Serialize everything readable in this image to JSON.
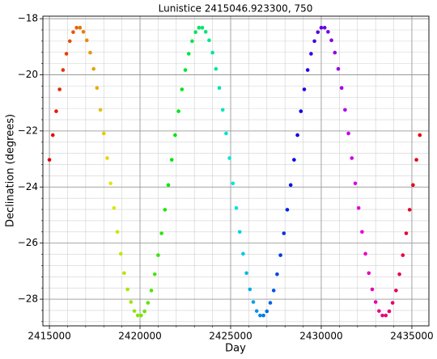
{
  "chart_data": {
    "type": "scatter",
    "title": "Lunistice 2415046.923300, 750",
    "x_label": "Day",
    "y_label": "Declination (degrees)",
    "colormap": "hsv",
    "grid": true,
    "minor_grid": true,
    "xlim": [
      2414640,
      2435940
    ],
    "ylim": [
      -28.95,
      -17.91
    ],
    "xticks": [
      2415000,
      2420000,
      2425000,
      2430000,
      2435000
    ],
    "yticks": [
      {
        "value": -28,
        "label": "−28"
      },
      {
        "value": -26,
        "label": "−26"
      },
      {
        "value": -24,
        "label": "−24"
      },
      {
        "value": -22,
        "label": "−22"
      },
      {
        "value": -20,
        "label": "−20"
      },
      {
        "value": -18,
        "label": "−18"
      }
    ],
    "xminorticks": [
      2416000,
      2417000,
      2418000,
      2419000,
      2421000,
      2422000,
      2423000,
      2424000,
      2426000,
      2427000,
      2428000,
      2429000,
      2431000,
      2432000,
      2433000,
      2434000
    ],
    "yminorticks": [
      -28.8,
      -28.4,
      -27.6,
      -27.2,
      -26.8,
      -26.4,
      -25.6,
      -25.2,
      -24.8,
      -24.4,
      -23.6,
      -23.2,
      -22.8,
      -22.4,
      -21.6,
      -21.2,
      -20.8,
      -20.4,
      -19.6,
      -19.2,
      -18.8,
      -18.4
    ],
    "x": [
      2415000,
      2415187.5,
      2415375,
      2415562.5,
      2415750,
      2415937.5,
      2416125,
      2416312.5,
      2416500,
      2416687.5,
      2416875,
      2417062.5,
      2417250,
      2417437.5,
      2417625,
      2417812.5,
      2418000,
      2418187.5,
      2418375,
      2418562.5,
      2418750,
      2418937.5,
      2419125,
      2419312.5,
      2419500,
      2419687.5,
      2419875,
      2420062.5,
      2420250,
      2420437.5,
      2420625,
      2420812.5,
      2421000,
      2421187.5,
      2421375,
      2421562.5,
      2421750,
      2421937.5,
      2422125,
      2422312.5,
      2422500,
      2422687.5,
      2422875,
      2423062.5,
      2423250,
      2423437.5,
      2423625,
      2423812.5,
      2424000,
      2424187.5,
      2424375,
      2424562.5,
      2424750,
      2424937.5,
      2425125,
      2425312.5,
      2425500,
      2425687.5,
      2425875,
      2426062.5,
      2426250,
      2426437.5,
      2426625,
      2426812.5,
      2427000,
      2427187.5,
      2427375,
      2427562.5,
      2427750,
      2427937.5,
      2428125,
      2428312.5,
      2428500,
      2428687.5,
      2428875,
      2429062.5,
      2429250,
      2429437.5,
      2429625,
      2429812.5,
      2430000,
      2430187.5,
      2430375,
      2430562.5,
      2430750,
      2430937.5,
      2431125,
      2431312.5,
      2431500,
      2431687.5,
      2431875,
      2432062.5,
      2432250,
      2432437.5,
      2432625,
      2432812.5,
      2433000,
      2433187.5,
      2433375,
      2433562.5,
      2433750,
      2433937.5,
      2434125,
      2434312.5,
      2434500,
      2434687.5,
      2434875,
      2435062.5,
      2435250,
      2435437.5
    ],
    "values": [
      -23.03,
      -22.15,
      -21.3,
      -20.52,
      -19.83,
      -19.25,
      -18.8,
      -18.48,
      -18.32,
      -18.32,
      -18.47,
      -18.77,
      -19.21,
      -19.79,
      -20.47,
      -21.25,
      -22.09,
      -22.97,
      -23.87,
      -24.75,
      -25.6,
      -26.38,
      -27.07,
      -27.65,
      -28.1,
      -28.42,
      -28.58,
      -28.58,
      -28.43,
      -28.13,
      -27.69,
      -27.11,
      -26.43,
      -25.65,
      -24.81,
      -23.93,
      -23.03,
      -22.15,
      -21.3,
      -20.52,
      -19.83,
      -19.25,
      -18.8,
      -18.48,
      -18.32,
      -18.32,
      -18.47,
      -18.77,
      -19.21,
      -19.79,
      -20.47,
      -21.25,
      -22.09,
      -22.97,
      -23.87,
      -24.75,
      -25.6,
      -26.38,
      -27.07,
      -27.65,
      -28.1,
      -28.42,
      -28.58,
      -28.58,
      -28.43,
      -28.13,
      -27.69,
      -27.11,
      -26.43,
      -25.65,
      -24.81,
      -23.93,
      -23.03,
      -22.15,
      -21.3,
      -20.52,
      -19.83,
      -19.25,
      -18.8,
      -18.48,
      -18.32,
      -18.32,
      -18.47,
      -18.77,
      -19.21,
      -19.79,
      -20.47,
      -21.25,
      -22.09,
      -22.97,
      -23.87,
      -24.75,
      -25.6,
      -26.38,
      -27.07,
      -27.65,
      -28.1,
      -28.42,
      -28.58,
      -28.58,
      -28.43,
      -28.13,
      -27.69,
      -27.11,
      -26.43,
      -25.65,
      -24.81,
      -23.93,
      -23.03,
      -22.15
    ]
  }
}
